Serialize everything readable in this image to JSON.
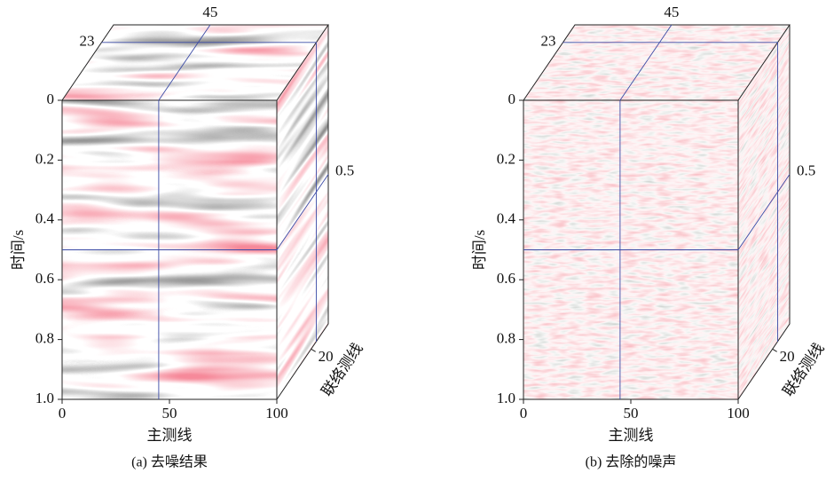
{
  "chart_data": [
    {
      "type": "seismic-cube",
      "caption": "(a) 去噪结果",
      "xlabel": "主测线",
      "ylabel": "时间/s",
      "zlabel": "联络测线",
      "xlim": [
        0,
        100
      ],
      "xticks": [
        0,
        50,
        100
      ],
      "ylim": [
        0,
        1
      ],
      "yticks": [
        0,
        0.2,
        0.4,
        0.6,
        0.8,
        {
          "value": 1,
          "label": "1.0"
        }
      ],
      "zlim": [
        0,
        30
      ],
      "zticks": [
        20
      ],
      "slices": [
        {
          "axis": "x",
          "value": 45
        },
        {
          "axis": "z",
          "value": 23
        },
        {
          "axis": "y",
          "value": 0.5
        }
      ],
      "slice_color": "#3b4ba6"
    },
    {
      "type": "seismic-cube",
      "caption": "(b) 去除的噪声",
      "xlabel": "主测线",
      "ylabel": "时间/s",
      "zlabel": "联络测线",
      "xlim": [
        0,
        100
      ],
      "xticks": [
        0,
        50,
        100
      ],
      "ylim": [
        0,
        1
      ],
      "yticks": [
        0,
        0.2,
        0.4,
        0.6,
        0.8,
        {
          "value": 1,
          "label": "1.0"
        }
      ],
      "zlim": [
        0,
        30
      ],
      "zticks": [
        20
      ],
      "slices": [
        {
          "axis": "x",
          "value": 45
        },
        {
          "axis": "z",
          "value": 23
        },
        {
          "axis": "y",
          "value": 0.5
        }
      ],
      "slice_color": "#3b4ba6"
    }
  ]
}
